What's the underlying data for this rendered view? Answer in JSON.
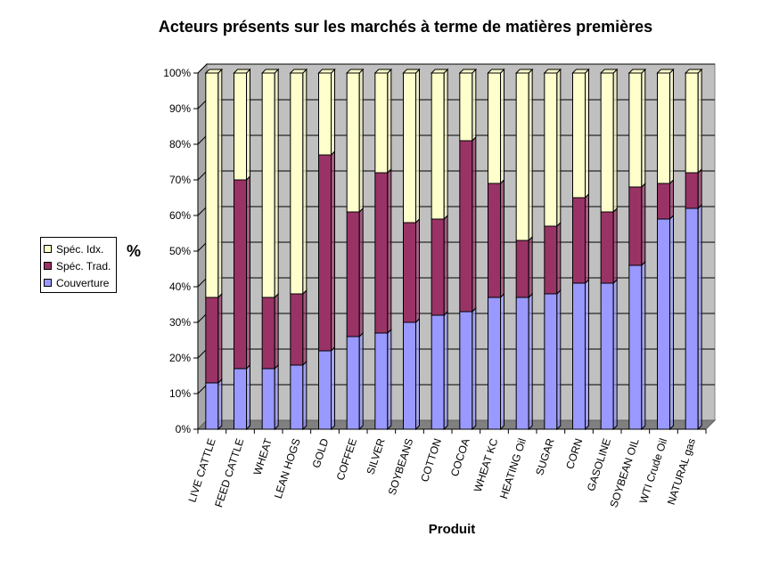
{
  "chart_data": {
    "type": "bar",
    "stacked": true,
    "percent": true,
    "title": "Acteurs présents sur les marchés à terme de matières premières",
    "xlabel": "Produit",
    "ylabel": "%",
    "ylim": [
      0,
      100
    ],
    "yticks": [
      "0%",
      "10%",
      "20%",
      "30%",
      "40%",
      "50%",
      "60%",
      "70%",
      "80%",
      "90%",
      "100%"
    ],
    "grid": true,
    "legend_position": "left",
    "categories": [
      "LIVE CATTLE",
      "FEED CATTLE",
      "WHEAT",
      "LEAN HOGS",
      "GOLD",
      "COFFEE",
      "SILVER",
      "SOYBEANS",
      "COTTON",
      "COCOA",
      "WHEAT KC",
      "HEATING Oil",
      "SUGAR",
      "CORN",
      "GASOLINE",
      "SOYBEAN OIL",
      "WTI Crude Oil",
      "NATURAL gas"
    ],
    "series": [
      {
        "name": "Couverture",
        "color": "#9999ff",
        "values": [
          13,
          17,
          17,
          18,
          22,
          26,
          27,
          30,
          32,
          33,
          37,
          37,
          38,
          41,
          41,
          46,
          59,
          62
        ]
      },
      {
        "name": "Spéc. Trad.",
        "color": "#993366",
        "values": [
          24,
          53,
          20,
          20,
          55,
          35,
          45,
          28,
          27,
          48,
          32,
          16,
          19,
          24,
          20,
          22,
          10,
          10
        ]
      },
      {
        "name": "Spéc. Idx.",
        "color": "#ffffcc",
        "values": [
          63,
          30,
          63,
          62,
          23,
          39,
          28,
          42,
          41,
          19,
          31,
          47,
          43,
          35,
          39,
          32,
          31,
          28
        ]
      }
    ],
    "legend": [
      {
        "name": "Spéc. Idx.",
        "color": "#ffffcc"
      },
      {
        "name": "Spéc. Trad.",
        "color": "#993366"
      },
      {
        "name": "Couverture",
        "color": "#9999ff"
      }
    ]
  }
}
